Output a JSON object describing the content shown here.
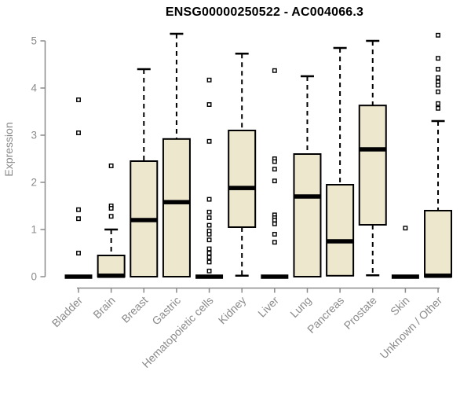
{
  "colors": {
    "box_fill": "#ede7ce",
    "box_stroke": "#000000",
    "median": "#000000",
    "whisker": "#000000",
    "outlier_fill": "#ffffff",
    "axis": "#8a8a8a",
    "tick_label": "#8a8a8a",
    "title": "#000000",
    "background": "#ffffff"
  },
  "chart_data": {
    "type": "boxplot",
    "title": "ENSG00000250522 - AC004066.3",
    "xlabel": "",
    "ylabel": "Expression",
    "ylim": [
      0,
      5
    ],
    "yticks": [
      0,
      1,
      2,
      3,
      4,
      5
    ],
    "grid": false,
    "legend": "none",
    "categories": [
      "Bladder",
      "Brain",
      "Breast",
      "Gastric",
      "Hematopoietic cells",
      "Kidney",
      "Liver",
      "Lung",
      "Pancreas",
      "Prostate",
      "Skin",
      "Unknown / Other"
    ],
    "series": [
      {
        "category": "Bladder",
        "min": 0,
        "q1": 0,
        "median": 0,
        "q3": 0,
        "max": 0,
        "outliers": [
          3.75,
          3.05,
          1.42,
          1.23,
          0.5
        ]
      },
      {
        "category": "Brain",
        "min": 0,
        "q1": 0,
        "median": 0.02,
        "q3": 0.45,
        "max": 1.0,
        "outliers": [
          2.35,
          1.5,
          1.45,
          1.28
        ]
      },
      {
        "category": "Breast",
        "min": 0,
        "q1": 0,
        "median": 1.2,
        "q3": 2.45,
        "max": 4.4,
        "outliers": []
      },
      {
        "category": "Gastric",
        "min": 0,
        "q1": 0,
        "median": 1.58,
        "q3": 2.92,
        "max": 5.15,
        "outliers": []
      },
      {
        "category": "Hematopoietic cells",
        "min": 0,
        "q1": 0,
        "median": 0,
        "q3": 0,
        "max": 0,
        "outliers": [
          4.17,
          3.65,
          2.87,
          1.64,
          1.37,
          1.25,
          1.09,
          0.97,
          0.9,
          0.78,
          0.59,
          0.5,
          0.41,
          0.31,
          0.12
        ]
      },
      {
        "category": "Kidney",
        "min": 0.02,
        "q1": 1.05,
        "median": 1.88,
        "q3": 3.1,
        "max": 4.73,
        "outliers": []
      },
      {
        "category": "Liver",
        "min": 0,
        "q1": 0,
        "median": 0,
        "q3": 0,
        "max": 0,
        "outliers": [
          4.37,
          2.5,
          2.44,
          2.28,
          2.03,
          1.31,
          1.25,
          1.2,
          1.12,
          0.9,
          0.73
        ]
      },
      {
        "category": "Lung",
        "min": 0,
        "q1": 0,
        "median": 1.7,
        "q3": 2.6,
        "max": 4.25,
        "outliers": []
      },
      {
        "category": "Pancreas",
        "min": 0.02,
        "q1": 0.02,
        "median": 0.75,
        "q3": 1.95,
        "max": 4.85,
        "outliers": []
      },
      {
        "category": "Prostate",
        "min": 0.03,
        "q1": 1.1,
        "median": 2.7,
        "q3": 3.63,
        "max": 5.0,
        "outliers": []
      },
      {
        "category": "Skin",
        "min": 0,
        "q1": 0,
        "median": 0,
        "q3": 0,
        "max": 0,
        "outliers": [
          1.03
        ]
      },
      {
        "category": "Unknown / Other",
        "min": 0,
        "q1": 0,
        "median": 0.02,
        "q3": 1.4,
        "max": 3.3,
        "outliers": [
          5.12,
          4.63,
          4.4,
          4.22,
          4.13,
          4.06,
          3.92,
          3.67,
          3.57
        ]
      }
    ]
  }
}
